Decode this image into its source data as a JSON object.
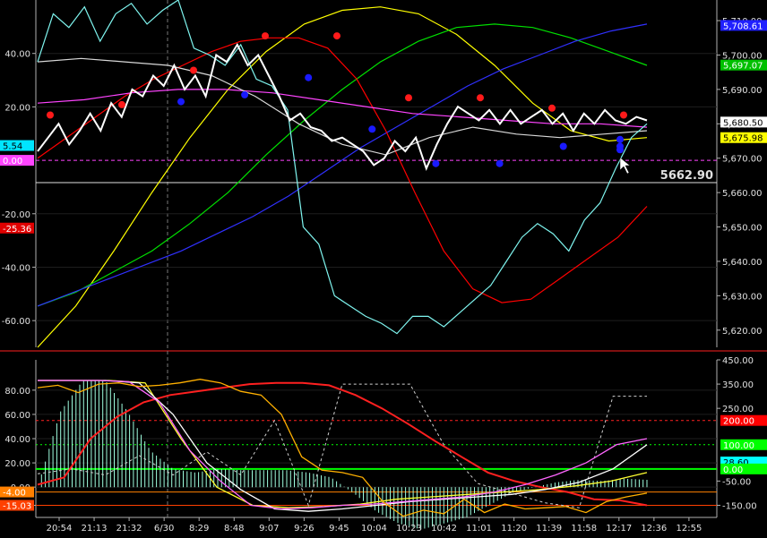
{
  "chart_data": [
    {
      "type": "line",
      "panel": "price",
      "left_axis": {
        "ticks": [
          "40.00",
          "20.00",
          "-20.00",
          "-40.00",
          "-60.00"
        ],
        "values": [
          40,
          20,
          -20,
          -40,
          -60
        ],
        "ylim": [
          -70,
          60
        ]
      },
      "right_axis": {
        "ticks": [
          "5,710.00",
          "5,700.00",
          "5,690.00",
          "5,680.00",
          "5,670.00",
          "5,660.00",
          "5,650.00",
          "5,640.00",
          "5,630.00",
          "5,620.00"
        ],
        "values": [
          5710,
          5700,
          5690,
          5680,
          5670,
          5660,
          5650,
          5640,
          5630,
          5620
        ],
        "ylim": [
          5615,
          5716
        ]
      },
      "left_badges": [
        {
          "text": "5.54",
          "value": 5.54,
          "color": "#00e5ff"
        },
        {
          "text": "0.00",
          "value": 0,
          "color": "#ff44ff"
        },
        {
          "text": "-25.36",
          "value": -25.36,
          "color": "#e00000"
        }
      ],
      "right_badges": [
        {
          "text": "5,708.61",
          "value": 5708.61,
          "color": "#2020ff"
        },
        {
          "text": "5,697.07",
          "value": 5697.07,
          "color": "#00c000"
        },
        {
          "text": "5,680.50",
          "value": 5680.5,
          "color": "#ffffff"
        },
        {
          "text": "5,675.98",
          "value": 5675.98,
          "color": "#ffff00"
        }
      ],
      "price_line": {
        "label": "5662.90",
        "value": 5662.9
      },
      "grid": true,
      "series": [
        {
          "color": "#ffffff",
          "values": [
            5672,
            5676,
            5680,
            5674,
            5678,
            5683,
            5678,
            5686,
            5682,
            5690,
            5688,
            5694,
            5691,
            5697,
            5690,
            5694,
            5688,
            5700,
            5698,
            5703,
            5697,
            5700,
            5694,
            5688,
            5681,
            5683,
            5679,
            5678,
            5675,
            5676,
            5674,
            5672,
            5668,
            5670,
            5675,
            5672,
            5676,
            5667,
            5674,
            5680,
            5685,
            5683,
            5681,
            5684,
            5680,
            5684,
            5680,
            5682,
            5684,
            5680,
            5683,
            5678,
            5683,
            5680,
            5684,
            5681,
            5680,
            5682,
            5681
          ]
        },
        {
          "color": "#7ff5ef",
          "values": [
            5698,
            5712,
            5708,
            5714,
            5704,
            5712,
            5715,
            5709,
            5713,
            5716,
            5702,
            5700,
            5697,
            5703,
            5693,
            5691,
            5684,
            5650,
            5645,
            5630,
            5627,
            5624,
            5622,
            5619,
            5624,
            5624,
            5621,
            5625,
            5629,
            5633,
            5640,
            5647,
            5651,
            5648,
            5643,
            5652,
            5657,
            5667,
            5676,
            5680
          ]
        },
        {
          "color": "#ff0000",
          "values": [
            5670,
            5676,
            5682,
            5688,
            5693,
            5697,
            5701,
            5704,
            5705,
            5705,
            5702,
            5693,
            5678,
            5660,
            5643,
            5632,
            5628,
            5629,
            5635,
            5641,
            5647,
            5656
          ]
        },
        {
          "color": "#ffff00",
          "values": [
            5615,
            5627,
            5643,
            5660,
            5676,
            5690,
            5701,
            5709,
            5713,
            5714,
            5712,
            5706,
            5697,
            5686,
            5678,
            5675,
            5676
          ]
        },
        {
          "color": "#00e000",
          "values": [
            5627,
            5631,
            5637,
            5643,
            5651,
            5660,
            5671,
            5681,
            5690,
            5698,
            5704,
            5708,
            5709,
            5708,
            5705,
            5701,
            5697
          ]
        },
        {
          "color": "#3030ff",
          "values": [
            5627,
            5631,
            5635,
            5639,
            5643,
            5648,
            5653,
            5659,
            5666,
            5673,
            5679,
            5685,
            5691,
            5696,
            5700,
            5704,
            5707,
            5709
          ]
        },
        {
          "color": "#ff44ff",
          "values": [
            5686,
            5687,
            5689,
            5690,
            5690,
            5689,
            5687,
            5685,
            5683,
            5682,
            5681,
            5680,
            5680,
            5679
          ]
        },
        {
          "color": "#d8d8d8",
          "values": [
            5698,
            5699,
            5698,
            5697,
            5694,
            5688,
            5680,
            5674,
            5671,
            5676,
            5679,
            5677,
            5676,
            5677,
            5678
          ]
        }
      ],
      "markers_high": [
        5681,
        5684,
        5694,
        5704,
        5704,
        5686,
        5686,
        5683,
        5681
      ],
      "markers_low": [
        5688,
        5690,
        5695,
        5680,
        5670,
        5670,
        5675,
        5677,
        5675,
        5674
      ]
    },
    {
      "type": "line",
      "panel": "oscillator",
      "left_axis": {
        "ticks": [
          "80.00",
          "60.00",
          "40.00",
          "20.00",
          "0.00",
          "-15.03"
        ],
        "values": [
          80,
          60,
          40,
          20,
          0,
          -15.03
        ],
        "ylim": [
          -25,
          105
        ]
      },
      "right_axis": {
        "ticks": [
          "450.00",
          "350.00",
          "250.00",
          "-50.00",
          "-150.00"
        ],
        "values": [
          450,
          350,
          250,
          -50,
          -150
        ],
        "ylim": [
          -200,
          450
        ]
      },
      "left_badges": [
        {
          "text": "-4.00",
          "value": -4,
          "color": "#ff8000"
        },
        {
          "text": "-15.03",
          "value": -15.03,
          "color": "#ff4000"
        }
      ],
      "right_badges": [
        {
          "text": "200.00",
          "value": 200,
          "color": "#ff0000"
        },
        {
          "text": "100.00",
          "value": 100,
          "color": "#00ff00"
        },
        {
          "text": "28.60",
          "value": 28.6,
          "color": "#00ffff"
        },
        {
          "text": "0.00",
          "value": 0,
          "color": "#00ff00"
        }
      ],
      "grid": true,
      "series": [
        {
          "color": "#9fffe0",
          "style": "histogram",
          "values": [
            0,
            62,
            88,
            88,
            62,
            30,
            15,
            12,
            15,
            14,
            14,
            14,
            12,
            8,
            -5,
            -20,
            -30,
            -35,
            -30,
            -25,
            -15,
            -5,
            0,
            4,
            6,
            5,
            7,
            6
          ]
        },
        {
          "color": "#ffb000",
          "values": [
            82,
            84,
            78,
            85,
            86,
            83,
            84,
            86,
            89,
            86,
            79,
            76,
            60,
            25,
            14,
            12,
            8,
            -12,
            -24,
            -19,
            -22,
            -10,
            -21,
            -14,
            -18,
            -17,
            -16,
            -21,
            -12,
            -8,
            -5
          ]
        },
        {
          "color": "#ff2020",
          "values": [
            2,
            8,
            40,
            58,
            70,
            76,
            79,
            82,
            85,
            86,
            86,
            84,
            76,
            65,
            52,
            38,
            25,
            12,
            5,
            0,
            -4,
            -10,
            -11,
            -15
          ]
        },
        {
          "color": "#ffffff",
          "values": [
            88,
            88,
            88,
            86,
            60,
            20,
            -2,
            -18,
            -20,
            -18,
            -15,
            -12,
            -10,
            -8,
            -6,
            -2,
            4,
            15,
            35
          ]
        },
        {
          "color": "#ff66ff",
          "values": [
            88,
            88,
            88,
            87,
            70,
            30,
            5,
            -15,
            -18,
            -17,
            -15,
            -14,
            -12,
            -10,
            -8,
            -4,
            2,
            10,
            20,
            35,
            40
          ]
        },
        {
          "color": "#ffff30",
          "values": [
            88,
            88,
            88,
            86,
            40,
            0,
            -15,
            -17,
            -16,
            -14,
            -10,
            -8,
            -6,
            -4,
            -2,
            1,
            5,
            12
          ]
        },
        {
          "color": "#d0d0d0",
          "style": "dashed",
          "values": [
            -20,
            0,
            -25,
            55,
            -25,
            70,
            -25,
            200,
            -150,
            350,
            350,
            350,
            100,
            -60,
            -100,
            -140,
            -160,
            300,
            300
          ]
        }
      ]
    }
  ],
  "x_axis": {
    "labels": [
      "20:54",
      "21:13",
      "21:32",
      "6/30",
      "8:29",
      "8:48",
      "9:07",
      "9:26",
      "9:45",
      "10:04",
      "10:23",
      "10:42",
      "11:01",
      "11:20",
      "11:39",
      "11:58",
      "12:17",
      "12:36",
      "12:55"
    ]
  }
}
